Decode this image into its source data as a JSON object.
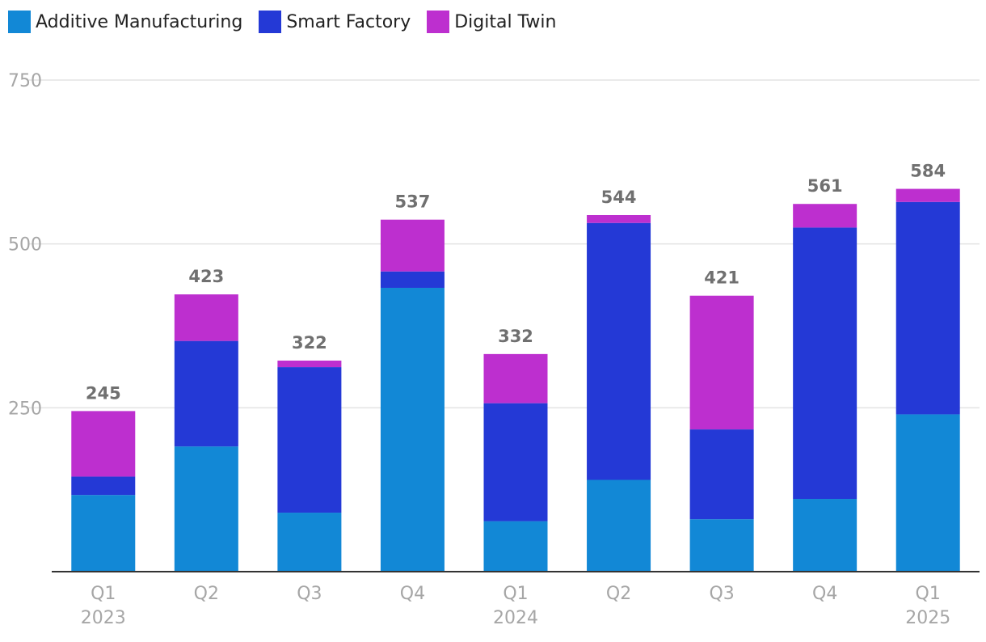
{
  "chart_data": {
    "type": "bar",
    "stacked": true,
    "title": "",
    "xlabel": "",
    "ylabel": "",
    "ylim": [
      0,
      750
    ],
    "yticks": [
      250,
      500,
      750
    ],
    "grid": true,
    "legend_position": "top-left",
    "categories": [
      {
        "quarter": "Q1",
        "year": "2023"
      },
      {
        "quarter": "Q2",
        "year": ""
      },
      {
        "quarter": "Q3",
        "year": ""
      },
      {
        "quarter": "Q4",
        "year": ""
      },
      {
        "quarter": "Q1",
        "year": "2024"
      },
      {
        "quarter": "Q2",
        "year": ""
      },
      {
        "quarter": "Q3",
        "year": ""
      },
      {
        "quarter": "Q4",
        "year": ""
      },
      {
        "quarter": "Q1",
        "year": "2025"
      }
    ],
    "series": [
      {
        "name": "Additive Manufacturing",
        "color": "#1288d6",
        "values": [
          117,
          191,
          90,
          433,
          77,
          140,
          80,
          111,
          240
        ]
      },
      {
        "name": "Smart Factory",
        "color": "#2439d6",
        "values": [
          28,
          161,
          222,
          25,
          180,
          392,
          137,
          414,
          324
        ]
      },
      {
        "name": "Digital Twin",
        "color": "#bd2fcf",
        "values": [
          100,
          71,
          10,
          79,
          75,
          12,
          204,
          36,
          20
        ]
      }
    ],
    "totals": [
      245,
      423,
      322,
      537,
      332,
      544,
      421,
      561,
      584
    ]
  }
}
